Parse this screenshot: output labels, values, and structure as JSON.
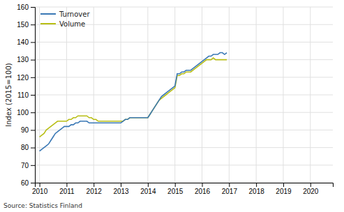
{
  "chart_data": {
    "type": "line",
    "ylabel": "Index (2015=100)",
    "source": "Source: Statistics Finland",
    "x": [
      2010,
      2010.0833,
      2010.1667,
      2010.25,
      2010.3333,
      2010.4167,
      2010.5,
      2010.5833,
      2010.6667,
      2010.75,
      2010.8333,
      2010.9167,
      2011,
      2011.0833,
      2011.1667,
      2011.25,
      2011.3333,
      2011.4167,
      2011.5,
      2011.5833,
      2011.6667,
      2011.75,
      2011.8333,
      2011.9167,
      2012,
      2012.0833,
      2012.1667,
      2012.25,
      2012.3333,
      2012.4167,
      2012.5,
      2012.5833,
      2012.6667,
      2012.75,
      2012.8333,
      2012.9167,
      2013,
      2013.0833,
      2013.1667,
      2013.25,
      2013.3333,
      2013.4167,
      2013.5,
      2013.5833,
      2013.6667,
      2013.75,
      2013.8333,
      2013.9167,
      2014,
      2014.0833,
      2014.1667,
      2014.25,
      2014.3333,
      2014.4167,
      2014.5,
      2014.5833,
      2014.6667,
      2014.75,
      2014.8333,
      2014.9167,
      2015,
      2015.0833,
      2015.1667,
      2015.25,
      2015.3333,
      2015.4167,
      2015.5,
      2015.5833,
      2015.6667,
      2015.75,
      2015.8333,
      2015.9167,
      2016,
      2016.0833,
      2016.1667,
      2016.25,
      2016.3333,
      2016.4167,
      2016.5,
      2016.5833,
      2016.6667,
      2016.75,
      2016.8333,
      2016.9167
    ],
    "xlim": [
      2009.83,
      2020.83
    ],
    "xticks": [
      2010,
      2011,
      2012,
      2013,
      2014,
      2015,
      2016,
      2017,
      2018,
      2019,
      2020
    ],
    "ylim": [
      60,
      160
    ],
    "yticks": [
      60,
      70,
      80,
      90,
      100,
      110,
      120,
      130,
      140,
      150,
      160
    ],
    "grid": true,
    "legend": "top-left",
    "series": [
      {
        "name": "Turnover",
        "color": "#3a78b5",
        "values": [
          78,
          79,
          80,
          81,
          82,
          84,
          86,
          88,
          89,
          90,
          91,
          92,
          92,
          92,
          93,
          93,
          94,
          94,
          95,
          95,
          95,
          95,
          94,
          94,
          94,
          94,
          94,
          94,
          94,
          94,
          94,
          94,
          94,
          94,
          94,
          94,
          94,
          95,
          96,
          96,
          97,
          97,
          97,
          97,
          97,
          97,
          97,
          97,
          97,
          99,
          101,
          103,
          105,
          107,
          109,
          110,
          111,
          112,
          113,
          114,
          115,
          122,
          122,
          123,
          123,
          124,
          124,
          124,
          125,
          126,
          127,
          128,
          129,
          130,
          131,
          132,
          132,
          133,
          133,
          133,
          134,
          134,
          133,
          134
        ]
      },
      {
        "name": "Volume",
        "color": "#b8be14",
        "values": [
          86,
          87,
          88,
          90,
          91,
          92,
          93,
          94,
          95,
          95,
          95,
          95,
          95,
          96,
          96,
          97,
          97,
          98,
          98,
          98,
          98,
          98,
          97,
          97,
          96,
          96,
          95,
          95,
          95,
          95,
          95,
          95,
          95,
          95,
          95,
          95,
          95,
          95,
          96,
          96,
          97,
          97,
          97,
          97,
          97,
          97,
          97,
          97,
          97,
          99,
          101,
          103,
          105,
          107,
          108,
          109,
          110,
          111,
          112,
          113,
          114,
          121,
          121,
          122,
          122,
          123,
          123,
          123,
          124,
          125,
          126,
          127,
          128,
          129,
          130,
          130,
          130,
          131,
          130,
          130,
          130,
          130,
          130,
          130
        ]
      }
    ]
  }
}
